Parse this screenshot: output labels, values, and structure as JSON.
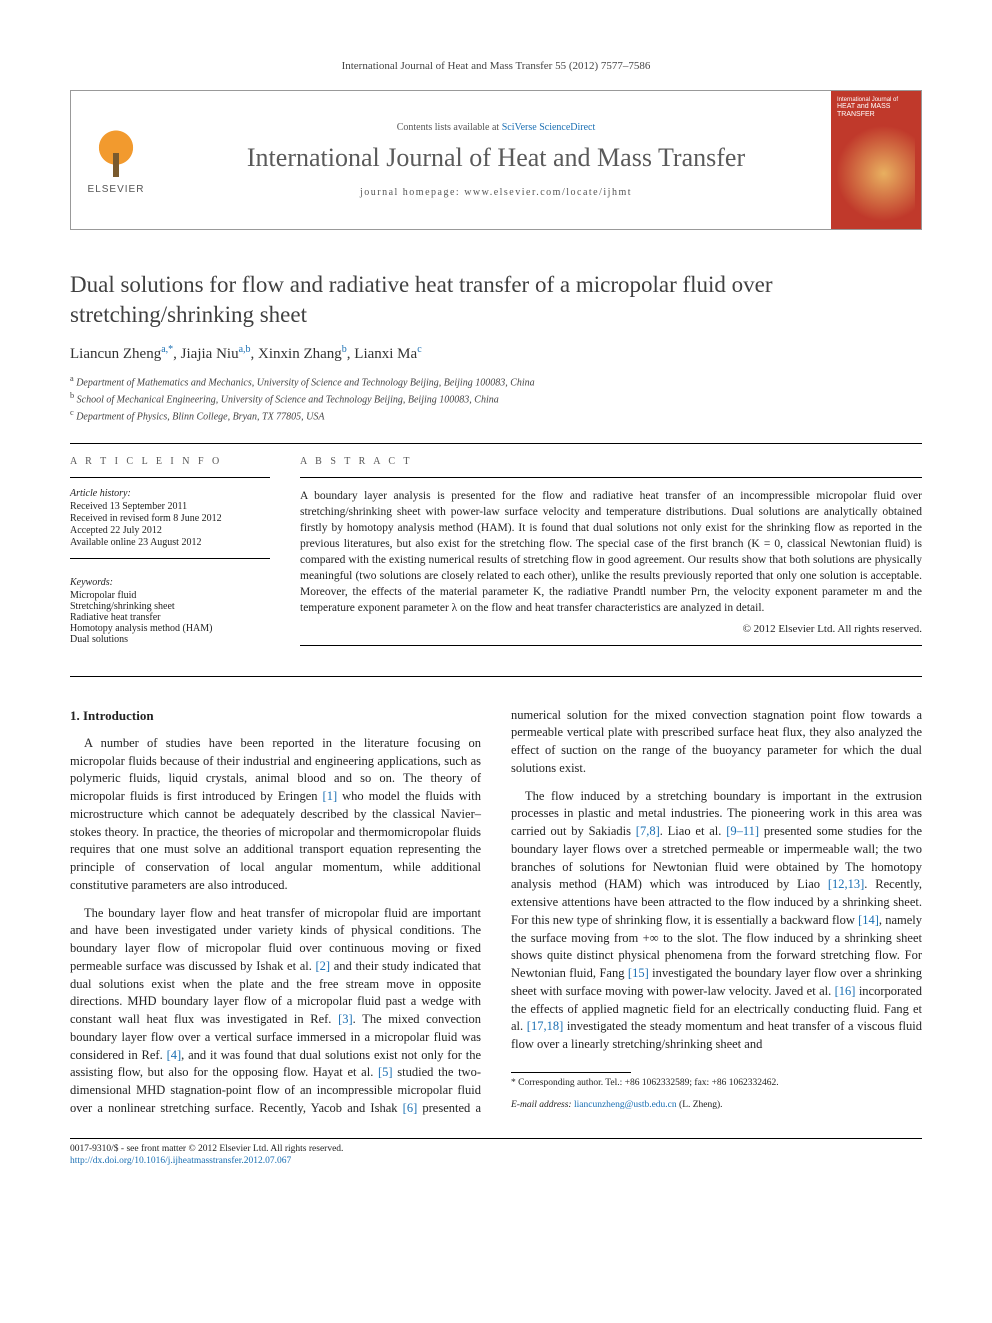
{
  "journal_ref": "International Journal of Heat and Mass Transfer 55 (2012) 7577–7586",
  "header": {
    "elsevier": "ELSEVIER",
    "contents_prefix": "Contents lists available at ",
    "contents_link": "SciVerse ScienceDirect",
    "journal_title": "International Journal of Heat and Mass Transfer",
    "homepage_prefix": "journal homepage: ",
    "homepage_url": "www.elsevier.com/locate/ijhmt",
    "cover_label": "International Journal of",
    "cover_title": "HEAT and MASS TRANSFER"
  },
  "title": "Dual solutions for flow and radiative heat transfer of a micropolar fluid over stretching/shrinking sheet",
  "authors": [
    {
      "name": "Liancun Zheng",
      "sup": "a,",
      "star": "*"
    },
    {
      "name": "Jiajia Niu",
      "sup": "a,b"
    },
    {
      "name": "Xinxin Zhang",
      "sup": "b"
    },
    {
      "name": "Lianxi Ma",
      "sup": "c"
    }
  ],
  "affiliations": [
    {
      "sup": "a",
      "text": "Department of Mathematics and Mechanics, University of Science and Technology Beijing, Beijing 100083, China"
    },
    {
      "sup": "b",
      "text": "School of Mechanical Engineering, University of Science and Technology Beijing, Beijing 100083, China"
    },
    {
      "sup": "c",
      "text": "Department of Physics, Blinn College, Bryan, TX 77805, USA"
    }
  ],
  "article_info_heading": "A R T I C L E   I N F O",
  "abstract_heading": "A B S T R A C T",
  "history": {
    "head": "Article history:",
    "lines": [
      "Received 13 September 2011",
      "Received in revised form 8 June 2012",
      "Accepted 22 July 2012",
      "Available online 23 August 2012"
    ]
  },
  "keywords": {
    "head": "Keywords:",
    "items": [
      "Micropolar fluid",
      "Stretching/shrinking sheet",
      "Radiative heat transfer",
      "Homotopy analysis method (HAM)",
      "Dual solutions"
    ]
  },
  "abstract": "A boundary layer analysis is presented for the flow and radiative heat transfer of an incompressible micropolar fluid over stretching/shrinking sheet with power-law surface velocity and temperature distributions. Dual solutions are analytically obtained firstly by homotopy analysis method (HAM). It is found that dual solutions not only exist for the shrinking flow as reported in the previous literatures, but also exist for the stretching flow. The special case of the first branch (K = 0, classical Newtonian fluid) is compared with the existing numerical results of stretching flow in good agreement. Our results show that both solutions are physically meaningful (two solutions are closely related to each other), unlike the results previously reported that only one solution is acceptable. Moreover, the effects of the material parameter K, the radiative Prandtl number Prn, the velocity exponent parameter m and the temperature exponent parameter λ on the flow and heat transfer characteristics are analyzed in detail.",
  "copyright": "© 2012 Elsevier Ltd. All rights reserved.",
  "section1_heading": "1. Introduction",
  "para1": "A number of studies have been reported in the literature focusing on micropolar fluids because of their industrial and engineering applications, such as polymeric fluids, liquid crystals, animal blood and so on. The theory of micropolar fluids is first introduced by Eringen [1] who model the fluids with microstructure which cannot be adequately described by the classical Navier–stokes theory. In practice, the theories of micropolar and thermomicropolar fluids requires that one must solve an additional transport equation representing the principle of conservation of local angular momentum, while additional constitutive parameters are also introduced.",
  "para2": "The boundary layer flow and heat transfer of micropolar fluid are important and have been investigated under variety kinds of physical conditions. The boundary layer flow of micropolar fluid over continuous moving or fixed permeable surface was discussed by Ishak et al. [2] and their study indicated that dual solutions exist when the plate and the free stream move in opposite directions. MHD boundary layer flow of a micropolar fluid past a wedge with constant wall heat flux was investigated in Ref. [3]. The mixed convection boundary layer flow over a vertical surface immersed in a micropolar fluid was considered in Ref. [4], and it was found that dual solutions exist not only for the assisting flow, but also for",
  "para3": "the opposing flow. Hayat et al. [5] studied the two-dimensional MHD stagnation-point flow of an incompressible micropolar fluid over a nonlinear stretching surface. Recently, Yacob and Ishak [6] presented a numerical solution for the mixed convection stagnation point flow towards a permeable vertical plate with prescribed surface heat flux, they also analyzed the effect of suction on the range of the buoyancy parameter for which the dual solutions exist.",
  "para4": "The flow induced by a stretching boundary is important in the extrusion processes in plastic and metal industries. The pioneering work in this area was carried out by Sakiadis [7,8]. Liao et al. [9–11] presented some studies for the boundary layer flows over a stretched permeable or impermeable wall; the two branches of solutions for Newtonian fluid were obtained by The homotopy analysis method (HAM) which was introduced by Liao [12,13]. Recently, extensive attentions have been attracted to the flow induced by a shrinking sheet. For this new type of shrinking flow, it is essentially a backward flow [14], namely the surface moving from +∞ to the slot. The flow induced by a shrinking sheet shows quite distinct physical phenomena from the forward stretching flow. For Newtonian fluid, Fang [15] investigated the boundary layer flow over a shrinking sheet with surface moving with power-law velocity. Javed et al. [16] incorporated the effects of applied magnetic field for an electrically conducting fluid. Fang et al. [17,18] investigated the steady momentum and heat transfer of a viscous fluid flow over a linearly stretching/shrinking sheet and",
  "footnote": {
    "corr": "* Corresponding author. Tel.: +86 1062332589; fax: +86 1062332462.",
    "email_label": "E-mail address:",
    "email": "liancunzheng@ustb.edu.cn",
    "email_tail": " (L. Zheng)."
  },
  "bottom": {
    "issn": "0017-9310/$ - see front matter © 2012 Elsevier Ltd. All rights reserved.",
    "doi": "http://dx.doi.org/10.1016/j.ijheatmasstransfer.2012.07.067"
  },
  "refs": {
    "r1": "[1]",
    "r2": "[2]",
    "r3": "[3]",
    "r4": "[4]",
    "r5": "[5]",
    "r6": "[6]",
    "r78": "[7,8]",
    "r911": "[9–11]",
    "r1213": "[12,13]",
    "r14": "[14]",
    "r15": "[15]",
    "r16": "[16]",
    "r1718": "[17,18]"
  }
}
